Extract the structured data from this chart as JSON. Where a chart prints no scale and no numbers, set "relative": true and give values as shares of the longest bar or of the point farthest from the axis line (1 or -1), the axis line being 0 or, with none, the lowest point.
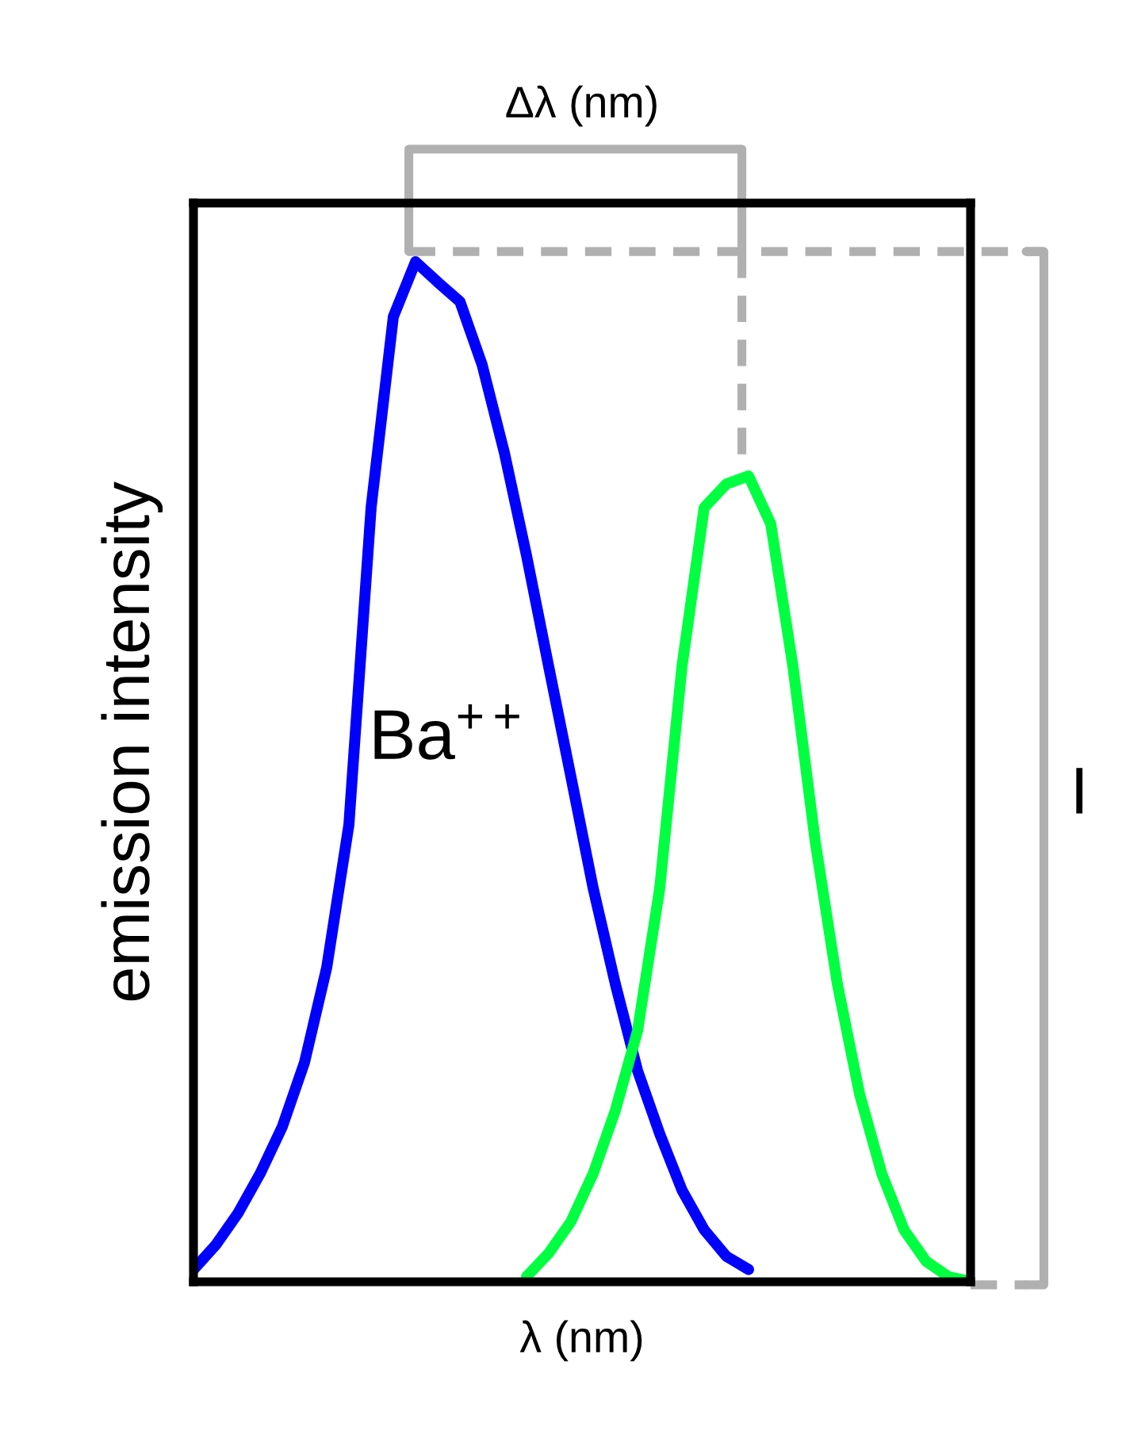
{
  "chart_data": {
    "type": "line",
    "relative": true,
    "xlabel": "λ (nm)",
    "ylabel": "emission intensity",
    "categories": [
      null,
      null,
      null,
      null,
      null,
      null,
      null,
      null,
      null,
      null,
      null,
      null,
      null,
      null,
      null,
      null,
      null,
      null,
      null,
      null,
      null,
      null,
      null,
      null,
      null,
      null,
      null,
      null,
      null,
      null,
      null,
      null,
      null,
      null,
      null,
      null
    ],
    "series": [
      {
        "name": "Ba$^{++}$",
        "color": "#0000ff",
        "values": [
          0.012,
          0.036,
          0.067,
          0.106,
          0.152,
          0.215,
          0.308,
          0.448,
          0.759,
          0.946,
          1.0,
          0.98,
          0.961,
          0.899,
          0.813,
          0.712,
          0.603,
          0.495,
          0.386,
          0.292,
          0.207,
          0.145,
          0.09,
          0.051,
          0.025,
          0.012,
          null,
          null,
          null,
          null,
          null,
          null,
          null,
          null,
          null,
          null
        ]
      },
      {
        "color": "#00ff40",
        "values": [
          null,
          null,
          null,
          null,
          null,
          null,
          null,
          null,
          null,
          null,
          null,
          null,
          null,
          null,
          null,
          0.005,
          0.028,
          0.059,
          0.106,
          0.168,
          0.246,
          0.386,
          0.603,
          0.759,
          0.782,
          0.79,
          0.743,
          0.603,
          0.432,
          0.292,
          0.184,
          0.106,
          0.051,
          0.02,
          0.005,
          0.0
        ]
      }
    ],
    "annotations": [
      "Δλ (nm)",
      "I"
    ],
    "legend": false,
    "grid": false
  }
}
